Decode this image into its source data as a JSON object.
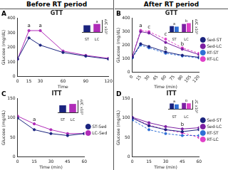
{
  "header": {
    "left": "Before RT period",
    "right": "After RT period"
  },
  "chart_data": [
    {
      "type": "line",
      "label": "A",
      "title": "GTT",
      "x_label": "Time",
      "y_label": "Glucose (mg/dL)",
      "x": [
        0,
        15,
        30,
        60,
        90,
        120
      ],
      "xlim": [
        0,
        120
      ],
      "xticks": [
        0,
        15,
        30,
        60,
        90,
        120
      ],
      "ylim": [
        0,
        400
      ],
      "yticks": [
        0,
        100,
        200,
        300,
        400
      ],
      "grid": false,
      "marker": "circle",
      "series": [
        {
          "color": "#1a237e",
          "line_style": "solid",
          "values": [
            120,
            265,
            215,
            165,
            140,
            120
          ]
        },
        {
          "color": "#b02cb8",
          "line_style": "solid",
          "values": [
            120,
            315,
            315,
            175,
            145,
            125
          ]
        }
      ],
      "annotations": [
        {
          "x": 15,
          "y": 330,
          "text": "a"
        },
        {
          "x": 30,
          "y": 330,
          "text": "a"
        }
      ],
      "inset": {
        "type": "bar",
        "y_label": "AUC x10³",
        "categories": [
          "ST",
          "LC"
        ],
        "ylim": [
          0,
          45
        ],
        "tick_labels": "x",
        "grid": false,
        "values": [
          25,
          30
        ],
        "colors": [
          "#1a237e",
          "#b02cb8"
        ],
        "annotations": [
          {
            "x": "LC",
            "y": 31,
            "text": "a"
          }
        ]
      }
    },
    {
      "type": "line",
      "label": "B",
      "title": "GTT",
      "x_label": "Time (min)",
      "y_label": "Glucose (mg/dL)",
      "x": [
        0,
        15,
        30,
        60,
        90,
        120
      ],
      "xlim": [
        0,
        120
      ],
      "xticks": [
        0,
        15,
        30,
        45,
        60,
        75,
        90,
        105,
        120
      ],
      "ylim": [
        0,
        400
      ],
      "yticks": [
        0,
        100,
        200,
        300,
        400
      ],
      "grid": false,
      "marker": "circle",
      "legend": "right",
      "series": [
        {
          "name": "Sed-ST",
          "color": "#1a237e",
          "line_style": "solid",
          "values": [
            110,
            210,
            190,
            150,
            125,
            110
          ]
        },
        {
          "name": "Sed-LC",
          "color": "#7b1fa2",
          "line_style": "solid",
          "values": [
            115,
            300,
            290,
            220,
            170,
            130
          ]
        },
        {
          "name": "RT-ST",
          "color": "#2f6fd6",
          "line_style": "dashed",
          "values": [
            105,
            200,
            180,
            140,
            120,
            105
          ]
        },
        {
          "name": "RT-LC",
          "color": "#e040c8",
          "line_style": "dashed",
          "values": [
            115,
            310,
            300,
            245,
            180,
            140
          ]
        }
      ],
      "annotations": [
        {
          "x": 15,
          "y": 325,
          "text": "a"
        },
        {
          "x": 30,
          "y": 315,
          "text": "c"
        },
        {
          "x": 60,
          "y": 260,
          "text": "c"
        },
        {
          "x": 60,
          "y": 155,
          "text": "b"
        },
        {
          "x": 90,
          "y": 190,
          "text": "b"
        }
      ],
      "inset": {
        "type": "bar",
        "y_label": "AUC x10³",
        "categories": [
          "ST",
          "LC"
        ],
        "ylim": [
          0,
          45
        ],
        "tick_labels": "x",
        "grid": false,
        "series": [
          {
            "colors": [
              "#1a237e",
              "#7b1fa2"
            ],
            "values": [
              22,
              30
            ]
          },
          {
            "colors": [
              "#2f6fd6",
              "#e040c8"
            ],
            "values": [
              20,
              33
            ]
          }
        ],
        "annotations": [
          {
            "x": "ST",
            "y": 23,
            "text": "a"
          },
          {
            "x": "LC",
            "y": 34,
            "text": "b"
          }
        ]
      }
    },
    {
      "type": "line",
      "label": "C",
      "title": "ITT",
      "x_label": "Time (min)",
      "y_label": "Glucose (mg/dL)",
      "x": [
        0,
        15,
        30,
        45,
        60
      ],
      "xlim": [
        0,
        60
      ],
      "xticks": [
        0,
        15,
        30,
        45,
        60
      ],
      "ylim": [
        0,
        150
      ],
      "yticks": [
        0,
        50,
        100,
        150
      ],
      "grid": false,
      "marker": "circle",
      "legend": "right",
      "series": [
        {
          "name": "ST-Sed",
          "color": "#1a237e",
          "line_style": "solid",
          "values": [
            100,
            70,
            60,
            55,
            60
          ]
        },
        {
          "name": "LC-Sed",
          "color": "#b02cb8",
          "line_style": "solid",
          "values": [
            105,
            85,
            70,
            60,
            60
          ]
        }
      ],
      "annotations": [
        {
          "x": 15,
          "y": 90,
          "text": "a"
        }
      ],
      "inset": {
        "type": "bar",
        "y_label": "AUC x10³",
        "categories": [
          "ST",
          "LC"
        ],
        "ylim": [
          0,
          6
        ],
        "tick_labels": "x",
        "grid": false,
        "values": [
          3.5,
          4.2
        ],
        "colors": [
          "#1a237e",
          "#b02cb8"
        ]
      }
    },
    {
      "type": "line",
      "label": "D",
      "title": "ITT",
      "x_label": "Time (min)",
      "y_label": "Glucose (mg/dL)",
      "x": [
        0,
        15,
        30,
        45,
        60
      ],
      "xlim": [
        0,
        60
      ],
      "xticks": [
        0,
        15,
        30,
        45,
        60
      ],
      "ylim": [
        0,
        150
      ],
      "yticks": [
        0,
        50,
        100,
        150
      ],
      "grid": false,
      "marker": "circle",
      "legend": "right",
      "series": [
        {
          "name": "Sed-ST",
          "color": "#1a237e",
          "line_style": "solid",
          "values": [
            100,
            80,
            70,
            65,
            70
          ]
        },
        {
          "name": "Sed-LC",
          "color": "#7b1fa2",
          "line_style": "solid",
          "values": [
            102,
            88,
            78,
            72,
            75
          ]
        },
        {
          "name": "RT-ST",
          "color": "#2f6fd6",
          "line_style": "dashed",
          "values": [
            95,
            70,
            60,
            55,
            55
          ]
        },
        {
          "name": "RT-LC",
          "color": "#e040c8",
          "line_style": "dashed",
          "values": [
            100,
            82,
            70,
            62,
            50
          ]
        }
      ],
      "annotations": [
        {
          "x": 45,
          "y": 76,
          "text": "b"
        }
      ],
      "inset": {
        "type": "bar",
        "y_label": "AUC x10³",
        "categories": [
          "ST",
          "LC"
        ],
        "ylim": [
          0,
          6
        ],
        "tick_labels": "x",
        "grid": false,
        "series": [
          {
            "colors": [
              "#1a237e",
              "#7b1fa2"
            ],
            "values": [
              3.8,
              4.2
            ]
          },
          {
            "colors": [
              "#2f6fd6",
              "#e040c8"
            ],
            "values": [
              3.2,
              4.0
            ]
          }
        ],
        "annotations": [
          {
            "x": "ST",
            "y": 4.0,
            "text": "a"
          },
          {
            "x": "LC",
            "y": 4.4,
            "text": "b"
          }
        ]
      }
    }
  ]
}
